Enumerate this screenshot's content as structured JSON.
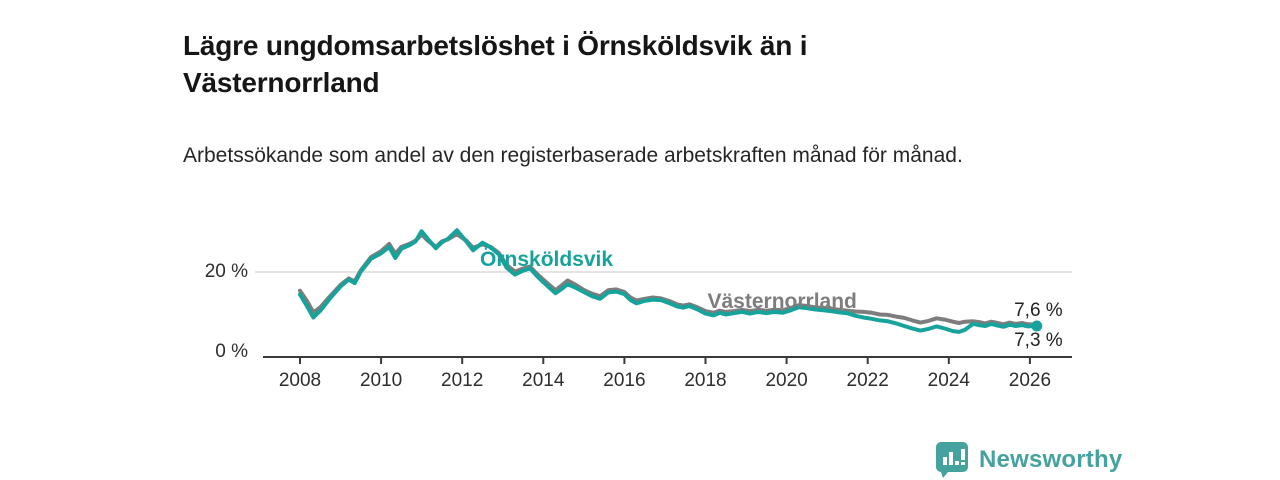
{
  "title": "Lägre ungdomsarbetslöshet i Örnsköldsvik än i Västernorrland",
  "subtitle": "Arbetssökande som andel av den registerbaserade arbetskraften månad för månad.",
  "brand": {
    "name": "Newsworthy",
    "color": "#45a29e"
  },
  "colors": {
    "axis": "#3a3a3a",
    "tick_label": "#2e2e2e",
    "gridline": "#dcdcdc",
    "end_label_text": "#222222"
  },
  "chart_data": {
    "type": "line",
    "unit": "%",
    "grid": "horizontal-only",
    "legend_position": "inline-labels",
    "x_axis": {
      "ticks": [
        2008,
        2010,
        2012,
        2014,
        2016,
        2018,
        2020,
        2022,
        2024,
        2026
      ],
      "range": [
        2007.1,
        2027.0
      ]
    },
    "y_axis": {
      "ticks": [
        {
          "value": 0,
          "label": "0 %"
        },
        {
          "value": 20,
          "label": "20 %"
        }
      ],
      "range": [
        0,
        31
      ],
      "gridlines": [
        20
      ]
    },
    "series": [
      {
        "name": "Västernorrland",
        "color": "#7d7d7d",
        "end_label": "7,6 %",
        "end_value": 7.6,
        "end_dot": false,
        "label_anchor": {
          "x": 2018.05,
          "y": 11.5
        },
        "end_label_anchor": {
          "x": 2025.61,
          "y": 9.6
        },
        "points": [
          [
            2008.0,
            15.6
          ],
          [
            2008.17,
            13.2
          ],
          [
            2008.33,
            10.5
          ],
          [
            2008.5,
            11.7
          ],
          [
            2008.75,
            14.4
          ],
          [
            2009.0,
            17.0
          ],
          [
            2009.2,
            18.5
          ],
          [
            2009.35,
            17.8
          ],
          [
            2009.5,
            20.4
          ],
          [
            2009.75,
            23.5
          ],
          [
            2010.0,
            24.9
          ],
          [
            2010.2,
            26.6
          ],
          [
            2010.35,
            24.3
          ],
          [
            2010.5,
            25.9
          ],
          [
            2010.7,
            26.6
          ],
          [
            2010.85,
            27.4
          ],
          [
            2011.0,
            28.8
          ],
          [
            2011.15,
            27.4
          ],
          [
            2011.35,
            25.9
          ],
          [
            2011.5,
            27.2
          ],
          [
            2011.65,
            27.7
          ],
          [
            2011.87,
            28.9
          ],
          [
            2012.1,
            27.4
          ],
          [
            2012.27,
            25.7
          ],
          [
            2012.5,
            26.5
          ],
          [
            2012.7,
            25.9
          ],
          [
            2012.9,
            24.5
          ],
          [
            2013.1,
            21.6
          ],
          [
            2013.3,
            20.1
          ],
          [
            2013.5,
            20.8
          ],
          [
            2013.67,
            21.3
          ],
          [
            2013.85,
            19.5
          ],
          [
            2014.0,
            18.2
          ],
          [
            2014.3,
            15.7
          ],
          [
            2014.45,
            16.8
          ],
          [
            2014.6,
            18.0
          ],
          [
            2014.8,
            17.0
          ],
          [
            2015.0,
            15.8
          ],
          [
            2015.2,
            14.9
          ],
          [
            2015.4,
            14.3
          ],
          [
            2015.6,
            15.7
          ],
          [
            2015.8,
            15.9
          ],
          [
            2016.0,
            15.3
          ],
          [
            2016.15,
            14.0
          ],
          [
            2016.3,
            13.3
          ],
          [
            2016.5,
            13.7
          ],
          [
            2016.7,
            14.0
          ],
          [
            2016.9,
            13.8
          ],
          [
            2017.1,
            13.2
          ],
          [
            2017.3,
            12.4
          ],
          [
            2017.45,
            12.1
          ],
          [
            2017.6,
            12.4
          ],
          [
            2017.8,
            11.7
          ],
          [
            2018.0,
            10.8
          ],
          [
            2018.2,
            10.4
          ],
          [
            2018.35,
            10.9
          ],
          [
            2018.5,
            10.6
          ],
          [
            2018.7,
            10.8
          ],
          [
            2018.9,
            11.1
          ],
          [
            2019.1,
            10.8
          ],
          [
            2019.3,
            11.1
          ],
          [
            2019.5,
            10.9
          ],
          [
            2019.7,
            11.1
          ],
          [
            2019.9,
            11.0
          ],
          [
            2020.1,
            11.5
          ],
          [
            2020.3,
            12.2
          ],
          [
            2020.5,
            12.0
          ],
          [
            2020.7,
            11.7
          ],
          [
            2020.9,
            11.5
          ],
          [
            2021.1,
            11.3
          ],
          [
            2021.3,
            11.1
          ],
          [
            2021.5,
            10.9
          ],
          [
            2021.7,
            10.7
          ],
          [
            2021.9,
            10.6
          ],
          [
            2022.1,
            10.4
          ],
          [
            2022.3,
            10.0
          ],
          [
            2022.5,
            9.9
          ],
          [
            2022.7,
            9.5
          ],
          [
            2022.9,
            9.2
          ],
          [
            2023.1,
            8.6
          ],
          [
            2023.3,
            8.1
          ],
          [
            2023.5,
            8.5
          ],
          [
            2023.7,
            9.1
          ],
          [
            2023.9,
            8.8
          ],
          [
            2024.1,
            8.3
          ],
          [
            2024.25,
            8.0
          ],
          [
            2024.4,
            8.3
          ],
          [
            2024.6,
            8.4
          ],
          [
            2024.75,
            8.2
          ],
          [
            2024.9,
            7.9
          ],
          [
            2025.05,
            8.3
          ],
          [
            2025.2,
            8.0
          ],
          [
            2025.35,
            7.7
          ],
          [
            2025.5,
            8.1
          ],
          [
            2025.65,
            7.8
          ],
          [
            2025.8,
            8.0
          ],
          [
            2025.95,
            7.7
          ],
          [
            2026.17,
            7.6
          ]
        ]
      },
      {
        "name": "Örnsköldsvik",
        "color": "#16a39b",
        "end_label": "7,3 %",
        "end_value": 7.3,
        "end_dot": true,
        "label_anchor": {
          "x": 2012.44,
          "y": 21.4
        },
        "end_label_anchor": {
          "x": 2025.61,
          "y": 2.6
        },
        "points": [
          [
            2008.0,
            14.7
          ],
          [
            2008.17,
            12.0
          ],
          [
            2008.33,
            9.3
          ],
          [
            2008.5,
            10.9
          ],
          [
            2008.75,
            13.9
          ],
          [
            2009.0,
            16.6
          ],
          [
            2009.2,
            18.2
          ],
          [
            2009.35,
            17.4
          ],
          [
            2009.5,
            20.1
          ],
          [
            2009.75,
            23.1
          ],
          [
            2010.0,
            24.4
          ],
          [
            2010.2,
            25.9
          ],
          [
            2010.35,
            23.3
          ],
          [
            2010.5,
            25.5
          ],
          [
            2010.7,
            26.3
          ],
          [
            2010.85,
            27.2
          ],
          [
            2011.0,
            29.6
          ],
          [
            2011.15,
            27.8
          ],
          [
            2011.35,
            25.6
          ],
          [
            2011.5,
            27.0
          ],
          [
            2011.65,
            27.8
          ],
          [
            2011.87,
            29.8
          ],
          [
            2012.1,
            27.2
          ],
          [
            2012.27,
            25.1
          ],
          [
            2012.5,
            26.9
          ],
          [
            2012.7,
            25.8
          ],
          [
            2012.9,
            24.2
          ],
          [
            2013.1,
            21.0
          ],
          [
            2013.3,
            19.4
          ],
          [
            2013.5,
            20.3
          ],
          [
            2013.67,
            20.9
          ],
          [
            2013.85,
            19.0
          ],
          [
            2014.0,
            17.6
          ],
          [
            2014.3,
            15.0
          ],
          [
            2014.45,
            16.0
          ],
          [
            2014.6,
            17.1
          ],
          [
            2014.8,
            16.3
          ],
          [
            2015.0,
            15.3
          ],
          [
            2015.2,
            14.3
          ],
          [
            2015.4,
            13.7
          ],
          [
            2015.6,
            15.2
          ],
          [
            2015.8,
            15.4
          ],
          [
            2016.0,
            14.8
          ],
          [
            2016.15,
            13.4
          ],
          [
            2016.3,
            12.6
          ],
          [
            2016.5,
            13.2
          ],
          [
            2016.7,
            13.5
          ],
          [
            2016.9,
            13.4
          ],
          [
            2017.1,
            12.7
          ],
          [
            2017.3,
            11.9
          ],
          [
            2017.45,
            11.6
          ],
          [
            2017.6,
            12.0
          ],
          [
            2017.8,
            11.2
          ],
          [
            2018.0,
            10.2
          ],
          [
            2018.2,
            9.8
          ],
          [
            2018.35,
            10.4
          ],
          [
            2018.5,
            10.0
          ],
          [
            2018.7,
            10.3
          ],
          [
            2018.9,
            10.6
          ],
          [
            2019.1,
            10.2
          ],
          [
            2019.3,
            10.6
          ],
          [
            2019.5,
            10.3
          ],
          [
            2019.7,
            10.6
          ],
          [
            2019.9,
            10.4
          ],
          [
            2020.1,
            11.0
          ],
          [
            2020.3,
            11.7
          ],
          [
            2020.5,
            11.5
          ],
          [
            2020.7,
            11.2
          ],
          [
            2020.9,
            11.0
          ],
          [
            2021.1,
            10.8
          ],
          [
            2021.3,
            10.5
          ],
          [
            2021.5,
            10.3
          ],
          [
            2021.7,
            9.7
          ],
          [
            2021.9,
            9.3
          ],
          [
            2022.1,
            9.0
          ],
          [
            2022.3,
            8.6
          ],
          [
            2022.5,
            8.4
          ],
          [
            2022.7,
            7.9
          ],
          [
            2022.9,
            7.3
          ],
          [
            2023.1,
            6.7
          ],
          [
            2023.3,
            6.2
          ],
          [
            2023.5,
            6.6
          ],
          [
            2023.7,
            7.2
          ],
          [
            2023.9,
            6.7
          ],
          [
            2024.1,
            6.1
          ],
          [
            2024.25,
            5.9
          ],
          [
            2024.4,
            6.4
          ],
          [
            2024.6,
            7.8
          ],
          [
            2024.75,
            7.5
          ],
          [
            2024.9,
            7.3
          ],
          [
            2025.05,
            7.8
          ],
          [
            2025.2,
            7.4
          ],
          [
            2025.35,
            7.1
          ],
          [
            2025.5,
            7.6
          ],
          [
            2025.65,
            7.3
          ],
          [
            2025.8,
            7.5
          ],
          [
            2025.95,
            7.2
          ],
          [
            2026.17,
            7.3
          ]
        ]
      }
    ]
  }
}
